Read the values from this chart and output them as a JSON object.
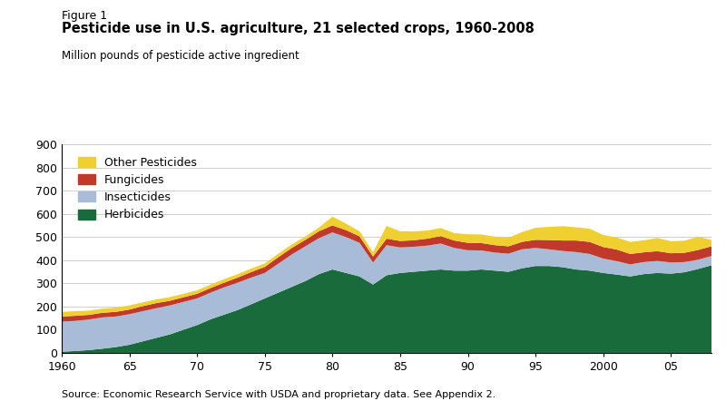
{
  "figure_label": "Figure 1",
  "title": "Pesticide use in U.S. agriculture, 21 selected crops, 1960-2008",
  "ylabel": "Million pounds of pesticide active ingredient",
  "source": "Source: Economic Research Service with USDA and proprietary data. See Appendix 2.",
  "ylim": [
    0,
    900
  ],
  "yticks": [
    0,
    100,
    200,
    300,
    400,
    500,
    600,
    700,
    800,
    900
  ],
  "xticks": [
    1960,
    1965,
    1970,
    1975,
    1980,
    1985,
    1990,
    1995,
    2000,
    2005
  ],
  "xticklabels": [
    "1960",
    "65",
    "70",
    "75",
    "80",
    "85",
    "90",
    "95",
    "2000",
    "05"
  ],
  "xlim": [
    1960,
    2008
  ],
  "colors": {
    "herbicides": "#1a6b3c",
    "insecticides": "#a8bcd8",
    "fungicides": "#c0392b",
    "other": "#f0d030"
  },
  "years": [
    1960,
    1961,
    1962,
    1963,
    1964,
    1965,
    1966,
    1967,
    1968,
    1969,
    1970,
    1971,
    1972,
    1973,
    1974,
    1975,
    1976,
    1977,
    1978,
    1979,
    1980,
    1981,
    1982,
    1983,
    1984,
    1985,
    1986,
    1987,
    1988,
    1989,
    1990,
    1991,
    1992,
    1993,
    1994,
    1995,
    1996,
    1997,
    1998,
    1999,
    2000,
    2001,
    2002,
    2003,
    2004,
    2005,
    2006,
    2007,
    2008
  ],
  "herbicides": [
    5,
    8,
    12,
    18,
    25,
    35,
    50,
    65,
    80,
    100,
    120,
    145,
    165,
    185,
    210,
    235,
    260,
    285,
    310,
    340,
    360,
    345,
    330,
    295,
    335,
    345,
    350,
    355,
    360,
    355,
    355,
    360,
    355,
    350,
    365,
    375,
    375,
    370,
    360,
    355,
    345,
    338,
    330,
    340,
    345,
    342,
    348,
    362,
    378
  ],
  "insecticides": [
    130,
    130,
    132,
    135,
    132,
    132,
    130,
    128,
    125,
    120,
    115,
    115,
    118,
    118,
    115,
    110,
    125,
    140,
    150,
    155,
    160,
    155,
    145,
    95,
    130,
    110,
    108,
    108,
    112,
    98,
    88,
    82,
    78,
    78,
    82,
    78,
    72,
    70,
    75,
    72,
    62,
    58,
    52,
    52,
    52,
    48,
    44,
    40,
    40
  ],
  "fungicides": [
    22,
    22,
    20,
    20,
    20,
    20,
    22,
    22,
    20,
    20,
    20,
    20,
    20,
    22,
    24,
    26,
    28,
    28,
    28,
    30,
    30,
    30,
    28,
    26,
    28,
    28,
    28,
    30,
    32,
    32,
    32,
    32,
    32,
    32,
    32,
    35,
    40,
    45,
    50,
    52,
    50,
    50,
    45,
    42,
    42,
    40,
    40,
    42,
    42
  ],
  "other": [
    20,
    20,
    18,
    18,
    18,
    18,
    16,
    16,
    16,
    15,
    15,
    15,
    15,
    15,
    15,
    15,
    15,
    15,
    15,
    16,
    38,
    28,
    22,
    18,
    55,
    42,
    38,
    35,
    35,
    32,
    37,
    37,
    37,
    37,
    42,
    52,
    57,
    62,
    57,
    57,
    52,
    52,
    52,
    52,
    57,
    52,
    52,
    57,
    28
  ]
}
